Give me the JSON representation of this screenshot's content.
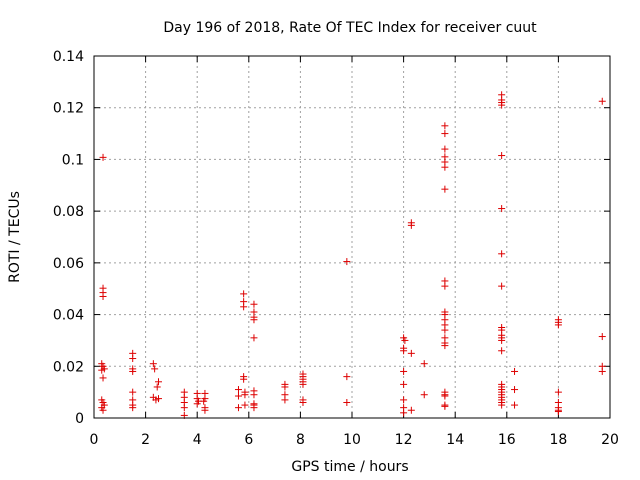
{
  "chart_data": {
    "type": "scatter",
    "title": "Day 196 of 2018, Rate Of TEC Index for receiver cuut",
    "xlabel": "GPS time / hours",
    "ylabel": "ROTI / TECUs",
    "xlim": [
      0,
      20
    ],
    "ylim": [
      0,
      0.14
    ],
    "grid": true,
    "marker": "plus",
    "color": "#dd0000",
    "x_ticks": [
      0,
      2,
      4,
      6,
      8,
      10,
      12,
      14,
      16,
      18,
      20
    ],
    "x_tick_labels": [
      "0",
      "2",
      "4",
      "6",
      "8",
      "10",
      "12",
      "14",
      "16",
      "18",
      "20"
    ],
    "y_ticks": [
      0,
      0.02,
      0.04,
      0.06,
      0.08,
      0.1,
      0.12,
      0.14
    ],
    "y_tick_labels": [
      "0",
      "0.02",
      "0.04",
      "0.06",
      "0.08",
      "0.1",
      "0.12",
      "0.14"
    ],
    "series": [
      {
        "name": "ROTI",
        "points": [
          [
            0.35,
            0.1008
          ],
          [
            0.35,
            0.0502
          ],
          [
            0.35,
            0.0485
          ],
          [
            0.35,
            0.047
          ],
          [
            0.3,
            0.021
          ],
          [
            0.35,
            0.02
          ],
          [
            0.4,
            0.019
          ],
          [
            0.3,
            0.0185
          ],
          [
            0.35,
            0.0155
          ],
          [
            0.3,
            0.007
          ],
          [
            0.35,
            0.006
          ],
          [
            0.4,
            0.005
          ],
          [
            0.3,
            0.004
          ],
          [
            0.35,
            0.003
          ],
          [
            1.5,
            0.025
          ],
          [
            1.5,
            0.023
          ],
          [
            1.5,
            0.019
          ],
          [
            1.5,
            0.018
          ],
          [
            1.5,
            0.01
          ],
          [
            1.5,
            0.007
          ],
          [
            1.5,
            0.005
          ],
          [
            1.5,
            0.004
          ],
          [
            2.3,
            0.021
          ],
          [
            2.35,
            0.019
          ],
          [
            2.5,
            0.014
          ],
          [
            2.45,
            0.012
          ],
          [
            2.3,
            0.008
          ],
          [
            2.4,
            0.007
          ],
          [
            2.5,
            0.0075
          ],
          [
            3.5,
            0.01
          ],
          [
            3.5,
            0.008
          ],
          [
            3.5,
            0.006
          ],
          [
            3.5,
            0.004
          ],
          [
            3.5,
            0.001
          ],
          [
            4.0,
            0.0095
          ],
          [
            4.0,
            0.0075
          ],
          [
            4.05,
            0.0065
          ],
          [
            4.0,
            0.0055
          ],
          [
            4.3,
            0.0095
          ],
          [
            4.3,
            0.0075
          ],
          [
            4.25,
            0.0065
          ],
          [
            4.3,
            0.004
          ],
          [
            4.3,
            0.003
          ],
          [
            5.6,
            0.011
          ],
          [
            5.6,
            0.0085
          ],
          [
            5.6,
            0.004
          ],
          [
            5.8,
            0.048
          ],
          [
            5.8,
            0.045
          ],
          [
            5.8,
            0.043
          ],
          [
            5.8,
            0.016
          ],
          [
            5.8,
            0.015
          ],
          [
            5.85,
            0.01
          ],
          [
            5.85,
            0.009
          ],
          [
            5.85,
            0.005
          ],
          [
            6.2,
            0.044
          ],
          [
            6.2,
            0.041
          ],
          [
            6.2,
            0.039
          ],
          [
            6.2,
            0.038
          ],
          [
            6.2,
            0.031
          ],
          [
            6.2,
            0.0105
          ],
          [
            6.2,
            0.009
          ],
          [
            6.2,
            0.0055
          ],
          [
            6.2,
            0.005
          ],
          [
            6.2,
            0.004
          ],
          [
            7.4,
            0.013
          ],
          [
            7.4,
            0.012
          ],
          [
            7.4,
            0.009
          ],
          [
            7.4,
            0.007
          ],
          [
            8.1,
            0.017
          ],
          [
            8.1,
            0.016
          ],
          [
            8.1,
            0.015
          ],
          [
            8.1,
            0.014
          ],
          [
            8.1,
            0.013
          ],
          [
            8.1,
            0.007
          ],
          [
            8.1,
            0.006
          ],
          [
            9.8,
            0.0605
          ],
          [
            9.8,
            0.016
          ],
          [
            9.8,
            0.006
          ],
          [
            12.0,
            0.031
          ],
          [
            12.05,
            0.03
          ],
          [
            12.0,
            0.027
          ],
          [
            12.0,
            0.026
          ],
          [
            12.0,
            0.018
          ],
          [
            12.0,
            0.013
          ],
          [
            12.0,
            0.007
          ],
          [
            12.0,
            0.004
          ],
          [
            12.0,
            0.002
          ],
          [
            12.3,
            0.0755
          ],
          [
            12.3,
            0.0745
          ],
          [
            12.3,
            0.025
          ],
          [
            12.3,
            0.003
          ],
          [
            12.8,
            0.021
          ],
          [
            12.8,
            0.009
          ],
          [
            13.6,
            0.113
          ],
          [
            13.6,
            0.11
          ],
          [
            13.6,
            0.104
          ],
          [
            13.6,
            0.101
          ],
          [
            13.6,
            0.099
          ],
          [
            13.6,
            0.097
          ],
          [
            13.6,
            0.0885
          ],
          [
            13.6,
            0.053
          ],
          [
            13.6,
            0.051
          ],
          [
            13.6,
            0.041
          ],
          [
            13.6,
            0.04
          ],
          [
            13.6,
            0.038
          ],
          [
            13.6,
            0.036
          ],
          [
            13.6,
            0.034
          ],
          [
            13.6,
            0.031
          ],
          [
            13.6,
            0.029
          ],
          [
            13.6,
            0.028
          ],
          [
            13.6,
            0.01
          ],
          [
            13.6,
            0.009
          ],
          [
            13.6,
            0.0085
          ],
          [
            13.6,
            0.005
          ],
          [
            13.6,
            0.0045
          ],
          [
            15.8,
            0.125
          ],
          [
            15.8,
            0.123
          ],
          [
            15.8,
            0.122
          ],
          [
            15.8,
            0.121
          ],
          [
            15.8,
            0.1015
          ],
          [
            15.8,
            0.081
          ],
          [
            15.8,
            0.0635
          ],
          [
            15.8,
            0.051
          ],
          [
            15.8,
            0.035
          ],
          [
            15.8,
            0.034
          ],
          [
            15.8,
            0.032
          ],
          [
            15.8,
            0.031
          ],
          [
            15.8,
            0.03
          ],
          [
            15.8,
            0.026
          ],
          [
            15.8,
            0.013
          ],
          [
            15.8,
            0.012
          ],
          [
            15.8,
            0.011
          ],
          [
            15.8,
            0.01
          ],
          [
            15.8,
            0.009
          ],
          [
            15.8,
            0.008
          ],
          [
            15.8,
            0.007
          ],
          [
            15.8,
            0.006
          ],
          [
            15.8,
            0.005
          ],
          [
            16.3,
            0.018
          ],
          [
            16.3,
            0.011
          ],
          [
            16.3,
            0.005
          ],
          [
            18.0,
            0.038
          ],
          [
            18.0,
            0.037
          ],
          [
            18.0,
            0.036
          ],
          [
            18.0,
            0.01
          ],
          [
            18.0,
            0.006
          ],
          [
            18.0,
            0.004
          ],
          [
            18.0,
            0.003
          ],
          [
            18.0,
            0.0025
          ],
          [
            19.7,
            0.1225
          ],
          [
            19.7,
            0.0315
          ],
          [
            19.7,
            0.02
          ],
          [
            19.7,
            0.018
          ]
        ]
      }
    ]
  }
}
